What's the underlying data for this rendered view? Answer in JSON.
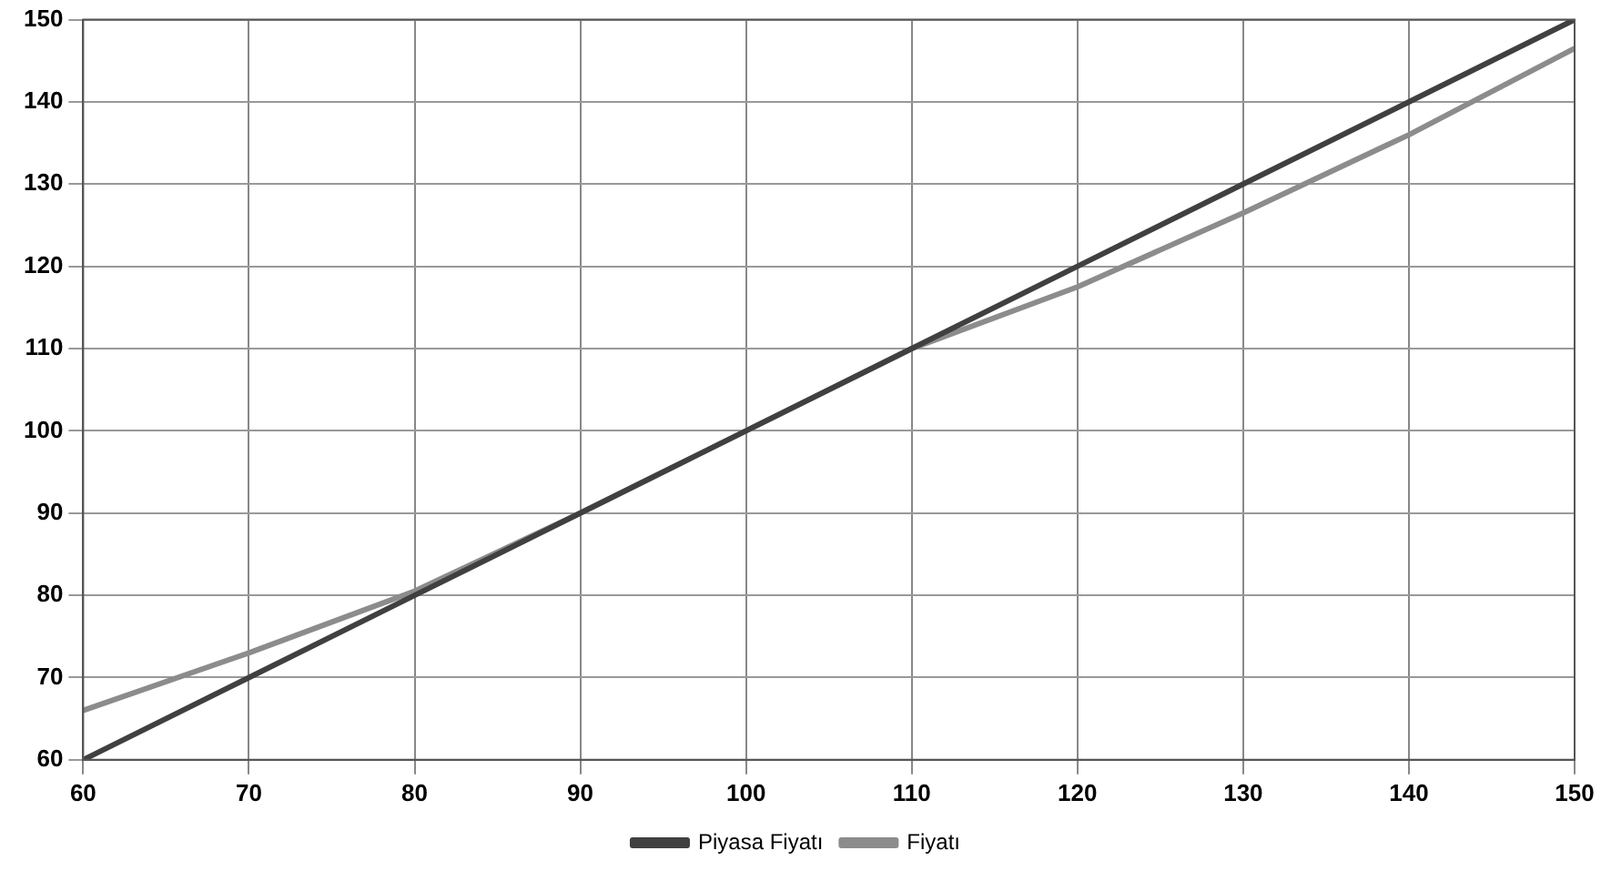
{
  "chart_data": {
    "type": "line",
    "x": [
      60,
      70,
      80,
      90,
      100,
      110,
      120,
      130,
      140,
      150
    ],
    "series": [
      {
        "name": "Piyasa Fiyatı",
        "color": "#404040",
        "values": [
          60,
          70,
          80,
          90,
          100,
          110,
          120,
          130,
          140,
          150
        ]
      },
      {
        "name": "Fiyatı",
        "color": "#8c8c8c",
        "values": [
          66,
          73,
          80.5,
          90,
          100,
          110,
          117.5,
          126.5,
          136,
          146.5
        ]
      }
    ],
    "xlim": [
      60,
      150
    ],
    "xticks": [
      60,
      70,
      80,
      90,
      100,
      110,
      120,
      130,
      140,
      150
    ],
    "ylim": [
      60,
      150
    ],
    "yticks": [
      60,
      70,
      80,
      90,
      100,
      110,
      120,
      130,
      140,
      150
    ],
    "grid": true,
    "legend": "bottom",
    "marker": "none",
    "line_style": "solid"
  }
}
